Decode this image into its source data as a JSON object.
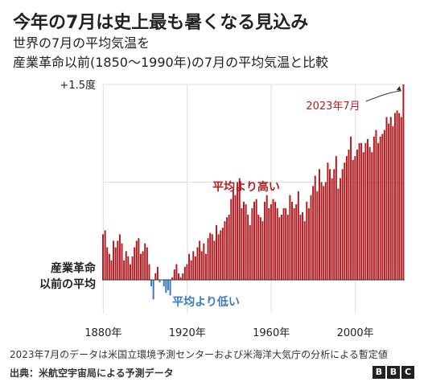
{
  "header": {
    "title": "今年の7月は史上最も暑くなる見込み",
    "subtitle_line1": "世界の7月の平均気温を",
    "subtitle_line2": "産業革命以前(1850〜1990年)の7月の平均気温と比較"
  },
  "footer": {
    "note": "2023年7月のデータは米国立環境予測センターおよび米海洋大気庁の分析による暫定値",
    "source": "出典：米航空宇宙局による予測データ",
    "logo_letters": [
      "B",
      "B",
      "C"
    ]
  },
  "colors": {
    "above": "#b01e23",
    "below": "#3a7bbf",
    "text": "#222222",
    "grid": "#dddddd"
  },
  "chart_data": {
    "type": "bar",
    "xlim": [
      1880,
      2023
    ],
    "ylim": [
      -0.35,
      1.5
    ],
    "x_ticks": [
      1880,
      1920,
      1960,
      2000
    ],
    "x_tick_labels": [
      "1880年",
      "1920年",
      "1960年",
      "2000年"
    ],
    "y_top_label": "+1.5度",
    "baseline_label_line1": "産業革命",
    "baseline_label_line2": "以前の平均",
    "annotation_above": "平均より高い",
    "annotation_below": "平均より低い",
    "highlight_label": "2023年7月",
    "highlight_year": 2023,
    "grid": true,
    "series": [
      {
        "x": [
          1880,
          1881,
          1882,
          1883,
          1884,
          1885,
          1886,
          1887,
          1888,
          1889,
          1890,
          1891,
          1892,
          1893,
          1894,
          1895,
          1896,
          1897,
          1898,
          1899,
          1900,
          1901,
          1902,
          1903,
          1904,
          1905,
          1906,
          1907,
          1908,
          1909,
          1910,
          1911,
          1912,
          1913,
          1914,
          1915,
          1916,
          1917,
          1918,
          1919,
          1920,
          1921,
          1922,
          1923,
          1924,
          1925,
          1926,
          1927,
          1928,
          1929,
          1930,
          1931,
          1932,
          1933,
          1934,
          1935,
          1936,
          1937,
          1938,
          1939,
          1940,
          1941,
          1942,
          1943,
          1944,
          1945,
          1946,
          1947,
          1948,
          1949,
          1950,
          1951,
          1952,
          1953,
          1954,
          1955,
          1956,
          1957,
          1958,
          1959,
          1960,
          1961,
          1962,
          1963,
          1964,
          1965,
          1966,
          1967,
          1968,
          1969,
          1970,
          1971,
          1972,
          1973,
          1974,
          1975,
          1976,
          1977,
          1978,
          1979,
          1980,
          1981,
          1982,
          1983,
          1984,
          1985,
          1986,
          1987,
          1988,
          1989,
          1990,
          1991,
          1992,
          1993,
          1994,
          1995,
          1996,
          1997,
          1998,
          1999,
          2000,
          2001,
          2002,
          2003,
          2004,
          2005,
          2006,
          2007,
          2008,
          2009,
          2010,
          2011,
          2012,
          2013,
          2014,
          2015,
          2016,
          2017,
          2018,
          2019,
          2020,
          2021,
          2022,
          2023
        ],
        "values": [
          0.35,
          0.38,
          0.25,
          0.2,
          0.15,
          0.3,
          0.25,
          0.3,
          0.35,
          0.28,
          0.15,
          0.22,
          0.18,
          0.12,
          0.18,
          0.25,
          0.3,
          0.32,
          0.2,
          0.22,
          0.28,
          0.25,
          0.12,
          -0.05,
          -0.15,
          0.05,
          0.1,
          -0.02,
          0.0,
          -0.05,
          -0.1,
          -0.08,
          -0.12,
          0.02,
          0.08,
          0.12,
          0.05,
          0.02,
          0.05,
          0.1,
          0.12,
          0.2,
          0.15,
          0.22,
          0.18,
          0.25,
          0.3,
          0.22,
          0.28,
          0.2,
          0.32,
          0.36,
          0.35,
          0.3,
          0.42,
          0.35,
          0.38,
          0.4,
          0.45,
          0.48,
          0.5,
          0.62,
          0.7,
          0.65,
          0.75,
          0.78,
          0.55,
          0.6,
          0.58,
          0.5,
          0.42,
          0.55,
          0.6,
          0.62,
          0.5,
          0.48,
          0.45,
          0.6,
          0.65,
          0.55,
          0.58,
          0.62,
          0.6,
          0.55,
          0.48,
          0.5,
          0.55,
          0.55,
          0.5,
          0.65,
          0.6,
          0.55,
          0.58,
          0.68,
          0.5,
          0.52,
          0.45,
          0.6,
          0.55,
          0.65,
          0.72,
          0.8,
          0.68,
          0.85,
          0.75,
          0.72,
          0.75,
          0.9,
          0.85,
          0.78,
          0.85,
          0.95,
          0.7,
          0.78,
          0.85,
          0.9,
          0.95,
          1.0,
          1.1,
          0.92,
          0.95,
          1.0,
          1.05,
          1.05,
          0.98,
          1.05,
          1.08,
          1.02,
          0.98,
          1.1,
          1.15,
          1.05,
          1.1,
          1.12,
          1.15,
          1.25,
          1.2,
          1.25,
          1.18,
          1.28,
          1.3,
          1.28,
          1.25,
          1.5
        ]
      }
    ]
  }
}
